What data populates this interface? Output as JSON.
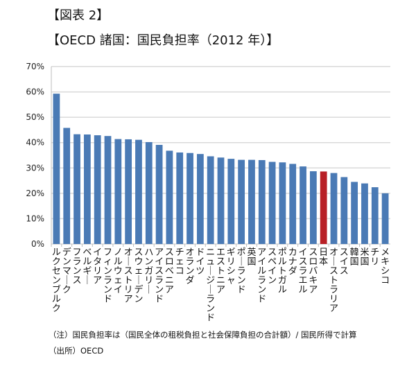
{
  "header": {
    "label": "【図表 2】",
    "title": "【OECD 諸国：国民負担率（2012 年）】"
  },
  "notes": {
    "note": "（注）国民負担率は（国民全体の租税負担と社会保障負担の合計額）/ 国民所得で計算",
    "source": "（出所）OECD"
  },
  "chart_data": {
    "type": "bar",
    "title": "【OECD 諸国：国民負担率（2012 年）】",
    "xlabel": "",
    "ylabel": "",
    "ylim": [
      0,
      70
    ],
    "yticks": [
      "0%",
      "10%",
      "20%",
      "30%",
      "40%",
      "50%",
      "60%",
      "70%"
    ],
    "grid": true,
    "categories": [
      "ルクセンブルク",
      "デンマーク",
      "フランス",
      "ベルギー",
      "イタリア",
      "フィンランド",
      "ノルウェイ",
      "オーストリア",
      "スウェーデン",
      "ハンガリー",
      "アイスランド",
      "スロベニア",
      "チェコ",
      "オランダ",
      "ドイツ",
      "ニュージーランド",
      "エストニア",
      "ギリシャ",
      "ポーランド",
      "英国",
      "アイルランド",
      "スペイン",
      "ポルトガル",
      "カナダ",
      "イスラエル",
      "スロバキア",
      "日本",
      "オーストラリア",
      "スイス",
      "韓国",
      "米国",
      "チリ",
      "メキシコ"
    ],
    "values": [
      59.3,
      45.8,
      43.3,
      43.2,
      42.9,
      42.6,
      41.4,
      41.3,
      41.1,
      40.2,
      39.1,
      36.8,
      36.1,
      35.9,
      35.5,
      34.6,
      34.1,
      33.6,
      33.2,
      33.2,
      33.1,
      32.4,
      32.2,
      31.6,
      30.6,
      28.7,
      28.6,
      28.0,
      26.4,
      24.5,
      23.9,
      22.4,
      20.0
    ],
    "colors": {
      "default": "#4a7ab5",
      "highlight": "#b81f25",
      "highlight_category": "日本",
      "grid": "#d9d9d9"
    }
  }
}
